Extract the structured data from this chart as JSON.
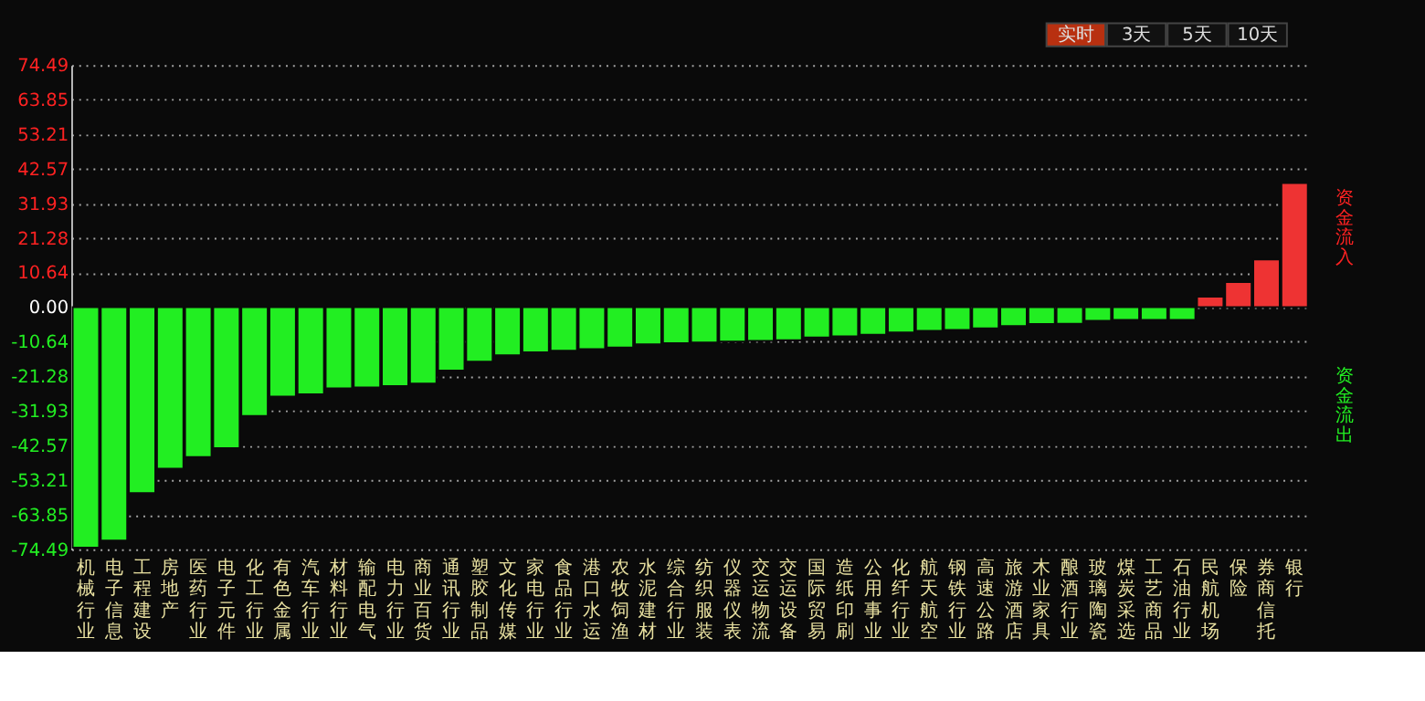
{
  "chart_data": {
    "type": "bar",
    "categories": [
      "机械行业",
      "电子信息",
      "工程建设",
      "房地产",
      "医药行业",
      "电子元件",
      "化工行业",
      "有色金属",
      "汽车行业",
      "材料行业",
      "输配电气",
      "电力行业",
      "商业百货",
      "通讯行业",
      "塑胶制品",
      "文化传媒",
      "家电行业",
      "食品行业",
      "港口水运",
      "农牧饲渔",
      "水泥建材",
      "综合行业",
      "纺织服装",
      "仪器仪表",
      "交运物流",
      "交运设备",
      "国际贸易",
      "造纸印刷",
      "公用事业",
      "化纤行业",
      "航天航空",
      "钢铁行业",
      "高速公路",
      "旅游酒店",
      "木业家具",
      "酿酒行业",
      "玻璃陶瓷",
      "煤炭采选",
      "工艺商品",
      "石油行业",
      "民航机场",
      "保险",
      "券商信托",
      "银行"
    ],
    "values": [
      -74,
      -71.8,
      -57.2,
      -49.7,
      -46.1,
      -43.4,
      -33.5,
      -27.5,
      -26.8,
      -25.0,
      -24.7,
      -24.3,
      -23.5,
      -19.5,
      -16.8,
      -14.8,
      -13.9,
      -13.4,
      -12.9,
      -12.4,
      -11.4,
      -11.1,
      -10.9,
      -10.6,
      -10.4,
      -10.2,
      -9.3,
      -9.0,
      -8.5,
      -7.8,
      -7.3,
      -7.0,
      -6.5,
      -5.8,
      -5.2,
      -5.1,
      -4.2,
      -3.9,
      -3.9,
      -3.9,
      3.2,
      7.7,
      14.7,
      38.2
    ],
    "colors": [
      "#22ee22",
      "#22ee22",
      "#22ee22",
      "#22ee22",
      "#22ee22",
      "#22ee22",
      "#22ee22",
      "#22ee22",
      "#22ee22",
      "#22ee22",
      "#22ee22",
      "#22ee22",
      "#22ee22",
      "#22ee22",
      "#22ee22",
      "#22ee22",
      "#22ee22",
      "#22ee22",
      "#22ee22",
      "#22ee22",
      "#22ee22",
      "#22ee22",
      "#22ee22",
      "#22ee22",
      "#22ee22",
      "#22ee22",
      "#22ee22",
      "#22ee22",
      "#22ee22",
      "#22ee22",
      "#22ee22",
      "#22ee22",
      "#22ee22",
      "#22ee22",
      "#22ee22",
      "#22ee22",
      "#22ee22",
      "#22ee22",
      "#22ee22",
      "#22ee22",
      "#ee3333",
      "#ee3333",
      "#ee3333",
      "#ee3333"
    ],
    "ylim": [
      -74.49,
      74.49
    ],
    "yticks": [
      -74.49,
      -63.85,
      -53.21,
      -42.57,
      -31.93,
      -21.28,
      -10.64,
      {
        "value": 0,
        "label": "0.00"
      },
      10.64,
      21.28,
      31.93,
      42.57,
      53.21,
      63.85,
      74.49
    ],
    "grid": "y",
    "annotations": [
      "实时",
      "3天",
      "5天",
      "10天",
      "资金流入",
      "资金流出"
    ]
  }
}
